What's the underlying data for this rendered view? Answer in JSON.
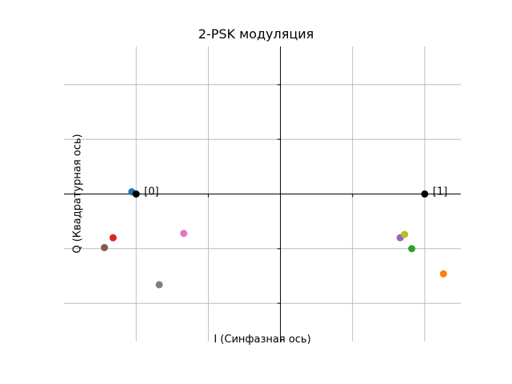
{
  "chart_data": {
    "type": "scatter",
    "title": "2-PSK модуляция",
    "xlabel": "I (Синфазная ось)",
    "ylabel": "Q (Квадратурная ось)",
    "xlim": [
      -1.5,
      1.25
    ],
    "ylim": [
      -1.35,
      1.35
    ],
    "grid": true,
    "x_gridlines": [
      -1.0,
      -0.5,
      0.5,
      1.0
    ],
    "y_gridlines": [
      -1.0,
      -0.5,
      0.5,
      1.0
    ],
    "colors": {
      "constellation": "#000000",
      "grid": "#b0b0b0",
      "axes": "#000000"
    },
    "constellation": [
      {
        "x": -1.0,
        "y": 0.0,
        "label": "[0]"
      },
      {
        "x": 1.0,
        "y": 0.0,
        "label": "[1]"
      }
    ],
    "received_points": [
      {
        "x": -1.03,
        "y": 0.02,
        "color": "#1f77b4"
      },
      {
        "x": 1.13,
        "y": -0.73,
        "color": "#ff7f0e"
      },
      {
        "x": 0.91,
        "y": -0.5,
        "color": "#2ca02c"
      },
      {
        "x": -1.16,
        "y": -0.4,
        "color": "#d62728"
      },
      {
        "x": 0.83,
        "y": -0.4,
        "color": "#9467bd"
      },
      {
        "x": -1.22,
        "y": -0.49,
        "color": "#8c564b"
      },
      {
        "x": -0.67,
        "y": -0.36,
        "color": "#e377c2"
      },
      {
        "x": -0.84,
        "y": -0.83,
        "color": "#7f7f7f"
      },
      {
        "x": 0.86,
        "y": -0.37,
        "color": "#bcbd22"
      }
    ]
  }
}
